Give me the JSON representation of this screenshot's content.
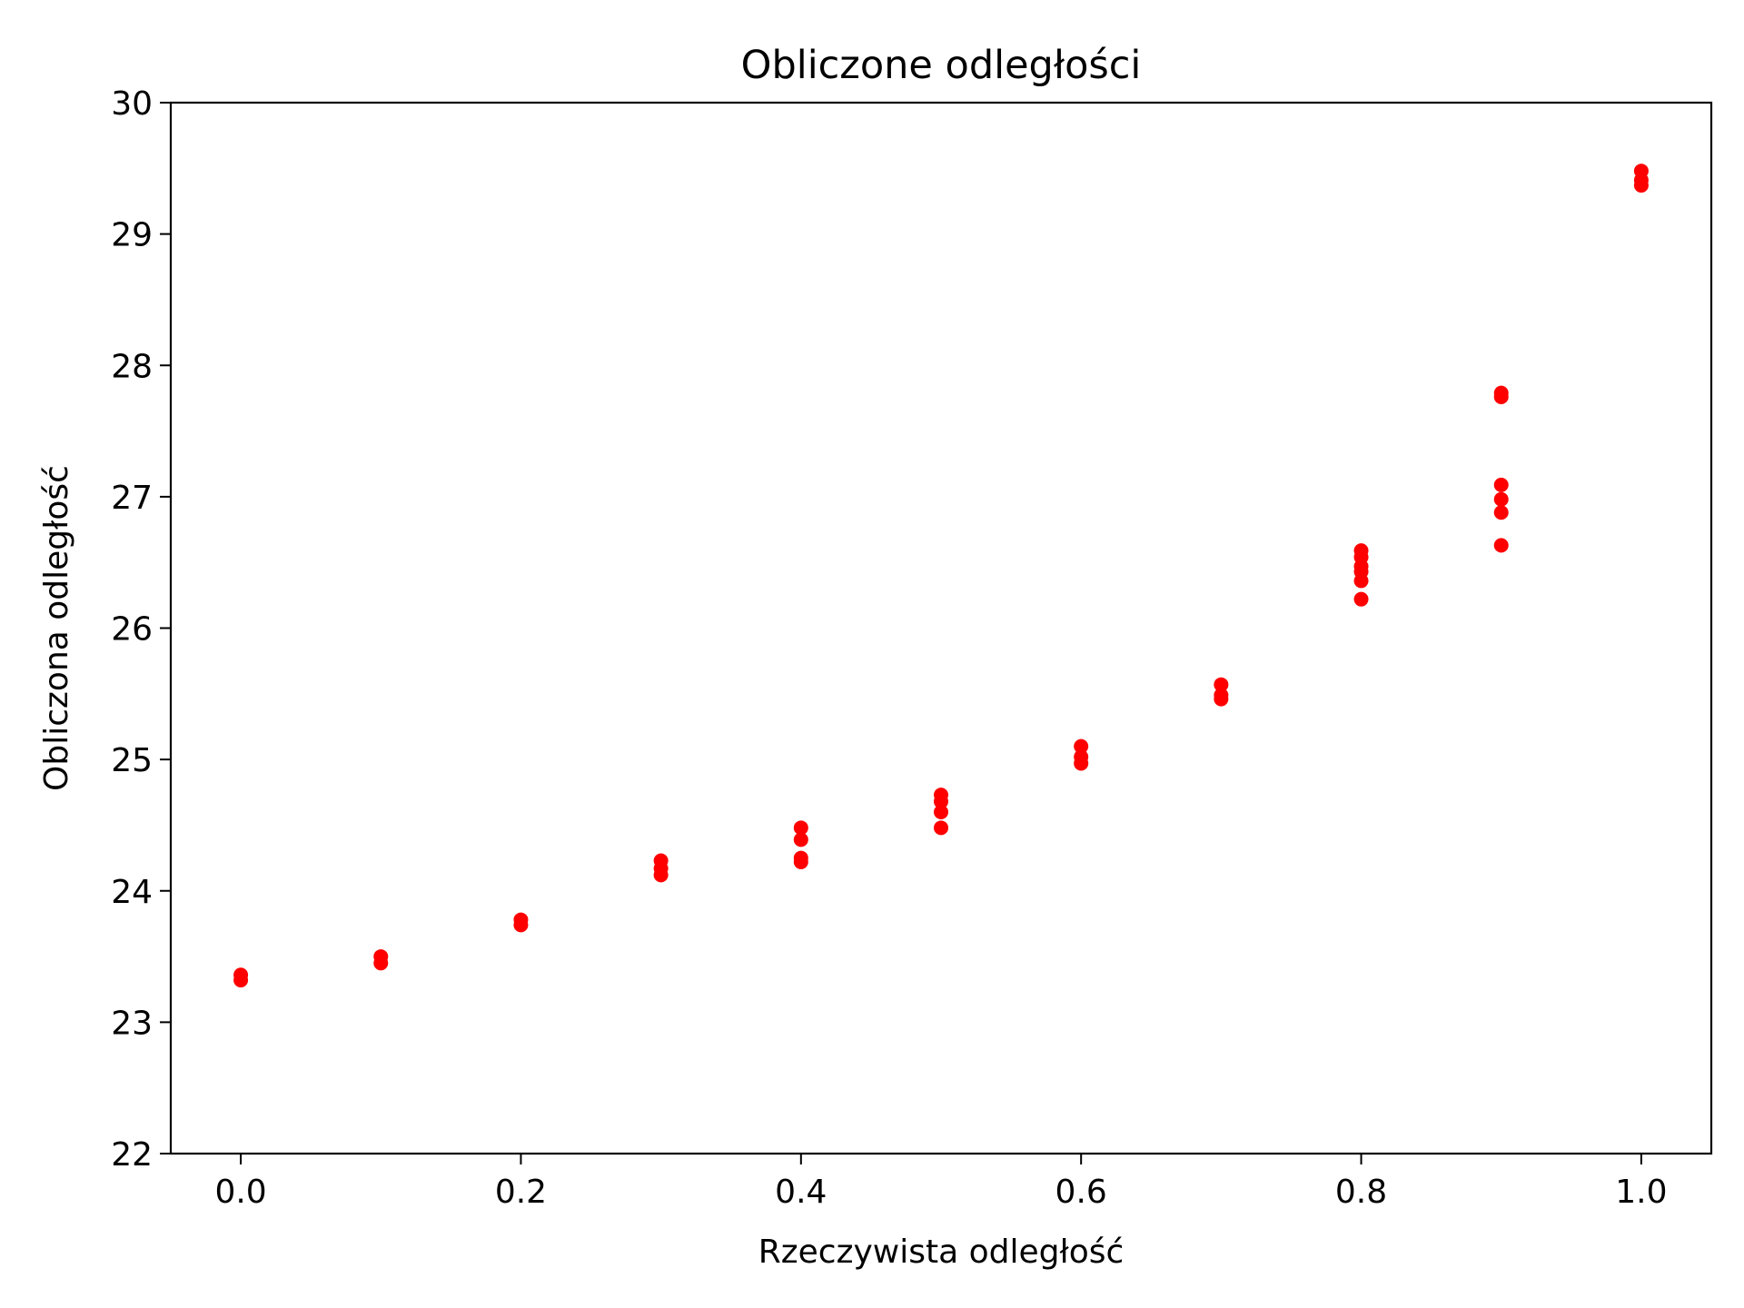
{
  "chart_data": {
    "type": "scatter",
    "title": "Obliczone odległości",
    "xlabel": "Rzeczywista odległość",
    "ylabel": "Obliczona odległość",
    "xlim": [
      -0.05,
      1.05
    ],
    "ylim": [
      22,
      30
    ],
    "x_ticks": [
      0.0,
      0.2,
      0.4,
      0.6,
      0.8,
      1.0
    ],
    "x_tick_labels": [
      "0.0",
      "0.2",
      "0.4",
      "0.6",
      "0.8",
      "1.0"
    ],
    "y_ticks": [
      22,
      23,
      24,
      25,
      26,
      27,
      28,
      29,
      30
    ],
    "y_tick_labels": [
      "22",
      "23",
      "24",
      "25",
      "26",
      "27",
      "28",
      "29",
      "30"
    ],
    "grid": false,
    "marker_color": "#ff0000",
    "series": [
      {
        "points": [
          [
            0.0,
            23.36
          ],
          [
            0.0,
            23.32
          ],
          [
            0.1,
            23.5
          ],
          [
            0.1,
            23.45
          ],
          [
            0.2,
            23.78
          ],
          [
            0.2,
            23.74
          ],
          [
            0.3,
            24.23
          ],
          [
            0.3,
            24.17
          ],
          [
            0.3,
            24.12
          ],
          [
            0.4,
            24.48
          ],
          [
            0.4,
            24.39
          ],
          [
            0.4,
            24.25
          ],
          [
            0.4,
            24.22
          ],
          [
            0.5,
            24.73
          ],
          [
            0.5,
            24.68
          ],
          [
            0.5,
            24.6
          ],
          [
            0.5,
            24.48
          ],
          [
            0.6,
            25.1
          ],
          [
            0.6,
            25.02
          ],
          [
            0.6,
            24.97
          ],
          [
            0.7,
            25.57
          ],
          [
            0.7,
            25.49
          ],
          [
            0.7,
            25.46
          ],
          [
            0.8,
            26.59
          ],
          [
            0.8,
            26.54
          ],
          [
            0.8,
            26.47
          ],
          [
            0.8,
            26.43
          ],
          [
            0.8,
            26.36
          ],
          [
            0.8,
            26.22
          ],
          [
            0.9,
            27.79
          ],
          [
            0.9,
            27.76
          ],
          [
            0.9,
            27.09
          ],
          [
            0.9,
            26.98
          ],
          [
            0.9,
            26.88
          ],
          [
            0.9,
            26.63
          ],
          [
            1.0,
            29.48
          ],
          [
            1.0,
            29.41
          ],
          [
            1.0,
            29.37
          ]
        ]
      }
    ]
  }
}
